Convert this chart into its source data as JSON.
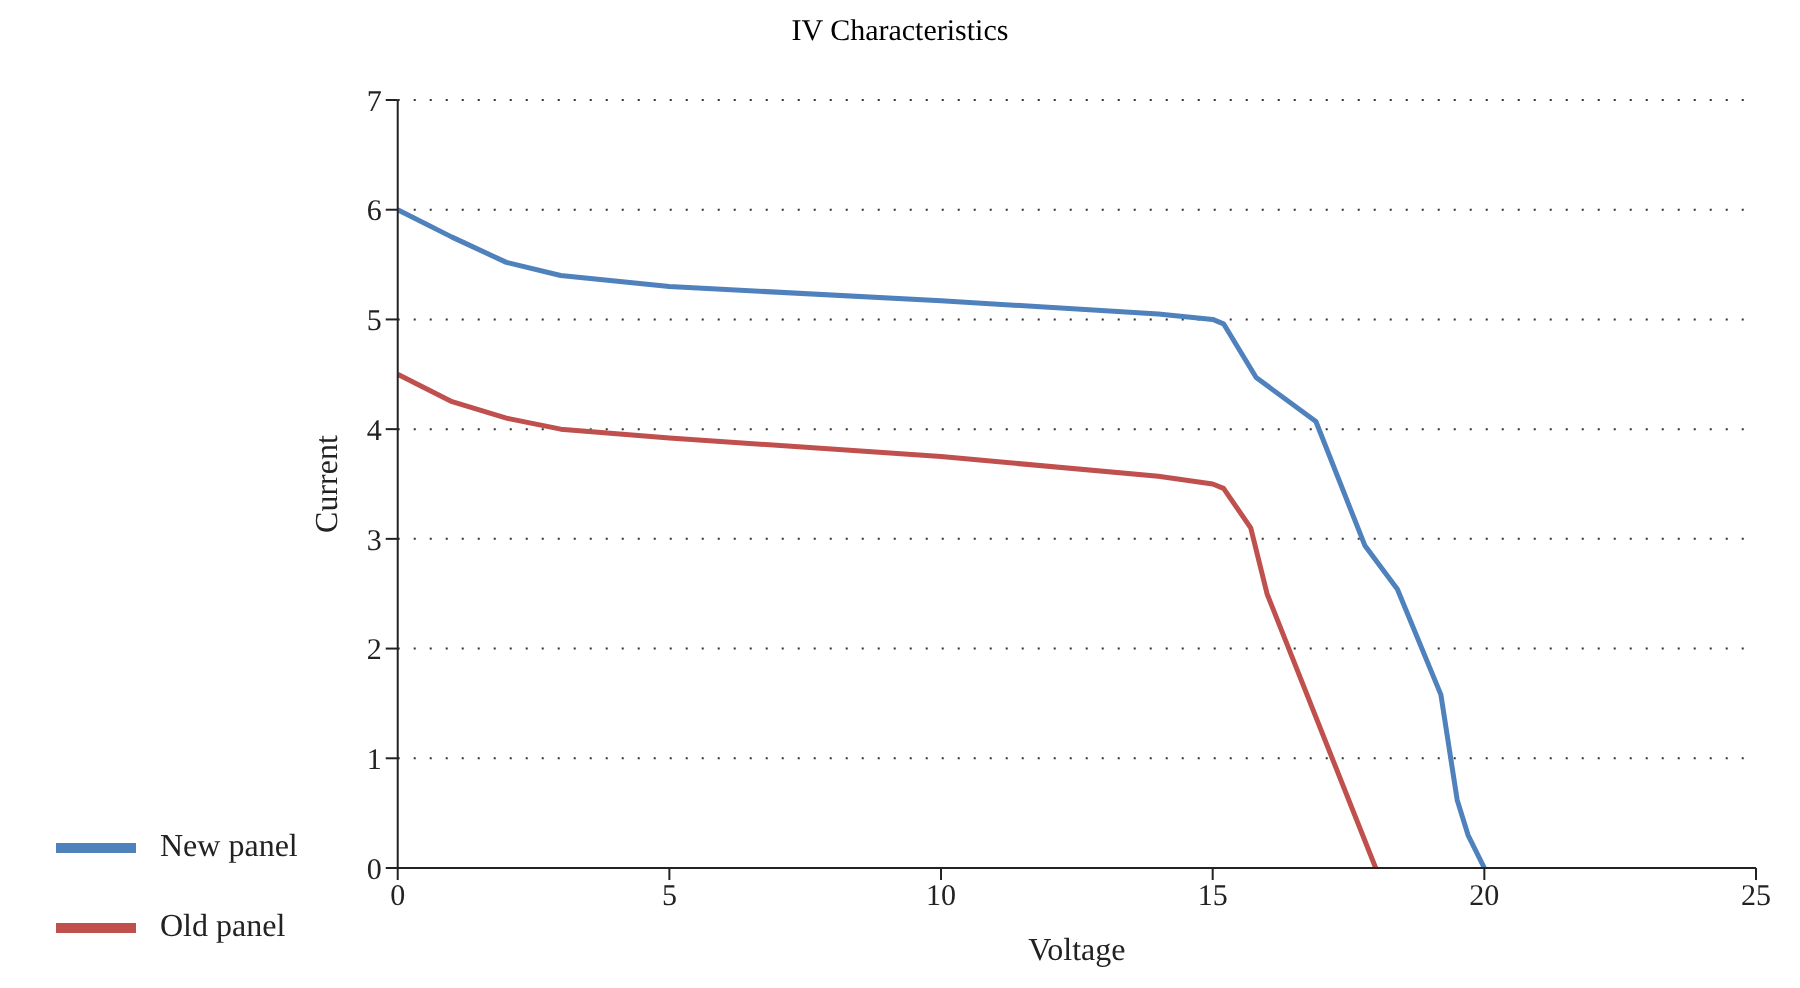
{
  "chart_data": {
    "type": "line",
    "title": "IV Characteristics",
    "xlabel": "Voltage",
    "ylabel": "Current",
    "xlim": [
      0,
      25
    ],
    "xticks": [
      0,
      5,
      10,
      15,
      20,
      25
    ],
    "ylim": [
      0,
      7
    ],
    "yticks": [
      0,
      1,
      2,
      3,
      4,
      5,
      6,
      7
    ],
    "grid": "y",
    "legend": "bottom left",
    "marker": "none",
    "line_style": "solid",
    "series": [
      {
        "name": "New panel",
        "color": "#4f81bd",
        "x": [
          0,
          1,
          2,
          3,
          5,
          10,
          14,
          15,
          15.2,
          15.8,
          16.9,
          17.8,
          18.4,
          19.2,
          19.5,
          19.7,
          20
        ],
        "values": [
          6,
          5.75,
          5.52,
          5.4,
          5.3,
          5.17,
          5.05,
          5,
          4.96,
          4.47,
          4.07,
          2.94,
          2.54,
          1.58,
          0.62,
          0.3,
          0
        ]
      },
      {
        "name": "Old panel",
        "color": "#c0504d",
        "x": [
          0,
          1,
          2,
          3,
          5,
          10,
          14,
          15,
          15.2,
          15.7,
          16,
          18
        ],
        "values": [
          4.5,
          4.25,
          4.1,
          4,
          3.92,
          3.75,
          3.57,
          3.5,
          3.46,
          3.1,
          2.5,
          0
        ]
      }
    ]
  }
}
